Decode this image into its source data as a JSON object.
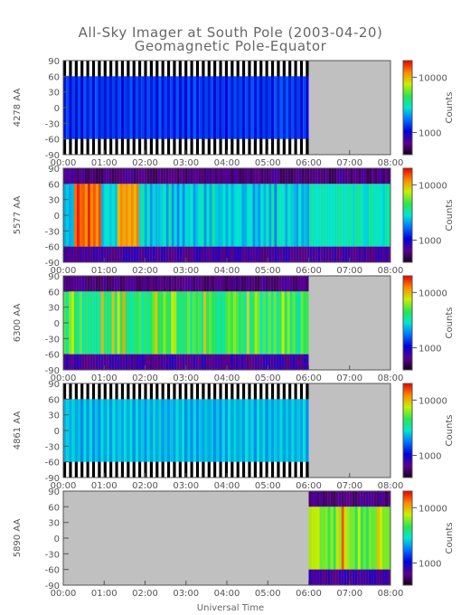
{
  "chart_data": {
    "type": "heatmap",
    "title": "All-Sky Imager at South Pole (2003-04-20)",
    "subtitle": "Geomagnetic Pole-Equator",
    "xlabel": "Universal Time",
    "x_ticks": [
      "00:00",
      "01:00",
      "02:00",
      "03:00",
      "04:00",
      "05:00",
      "06:00",
      "07:00",
      "08:00"
    ],
    "y_ticks": [
      90,
      60,
      30,
      0,
      -30,
      -60,
      -90
    ],
    "ylim": [
      -90,
      90
    ],
    "colorbar": {
      "label": "Counts",
      "ticks": [
        10000,
        1000
      ],
      "tick_labels": [
        "10000",
        "1000"
      ],
      "scale": "log"
    },
    "panels": [
      {
        "ylabel": "4278 AA",
        "data_start": "00:00",
        "data_end": "06:00",
        "dominant_level": 0.3,
        "pattern": "uniform"
      },
      {
        "ylabel": "5577 AA",
        "data_start": "00:00",
        "data_end": "08:00",
        "dominant_level": 0.5,
        "pattern": "bright-early"
      },
      {
        "ylabel": "6300 AA",
        "data_start": "00:00",
        "data_end": "06:00",
        "dominant_level": 0.55,
        "pattern": "warm"
      },
      {
        "ylabel": "4861 AA",
        "data_start": "00:00",
        "data_end": "06:00",
        "dominant_level": 0.45,
        "pattern": "uniform"
      },
      {
        "ylabel": "5890 AA",
        "data_start": "06:00",
        "data_end": "08:00",
        "dominant_level": 0.65,
        "pattern": "warm"
      }
    ]
  }
}
